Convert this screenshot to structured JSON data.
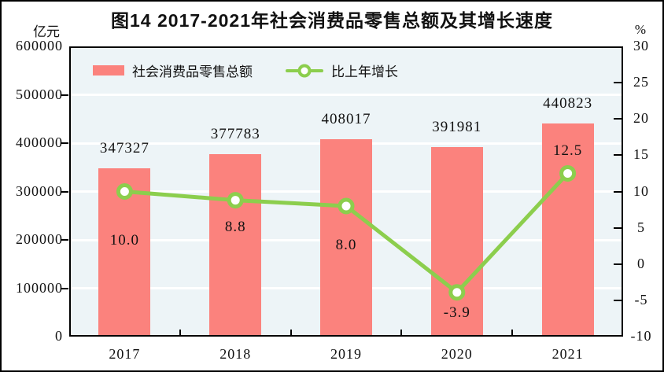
{
  "title": "图14  2017-2021年社会消费品零售总额及其增长速度",
  "colors": {
    "bar": "#FB827D",
    "line": "#8CCE4D",
    "marker_fill": "#FFFFFF",
    "plot_background": "#EDF4F7",
    "gridline": "#FFFFFF",
    "frame": "#000000",
    "text": "#111111"
  },
  "chart_data": {
    "type": "bar",
    "title": "图14  2017-2021年社会消费品零售总额及其增长速度",
    "categories": [
      "2017",
      "2018",
      "2019",
      "2020",
      "2021"
    ],
    "series": [
      {
        "name": "社会消费品零售总额",
        "type": "bar",
        "axis": "left",
        "values": [
          347327,
          377783,
          408017,
          391981,
          440823
        ],
        "labels": [
          "347327",
          "377783",
          "408017",
          "391981",
          "440823"
        ],
        "color": "#FB827D"
      },
      {
        "name": "比上年增长",
        "type": "line",
        "axis": "right",
        "values": [
          10.0,
          8.8,
          8.0,
          -3.9,
          12.5
        ],
        "labels": [
          "10.0",
          "8.8",
          "8.0",
          "-3.9",
          "12.5"
        ],
        "label_dy": [
          62,
          34,
          50,
          26,
          -28
        ],
        "color": "#8CCE4D"
      }
    ],
    "left_axis": {
      "unit": "亿元",
      "min": 0,
      "max": 600000,
      "step": 100000,
      "tick_labels": [
        "600000",
        "500000",
        "400000",
        "300000",
        "200000",
        "100000",
        "0"
      ]
    },
    "right_axis": {
      "unit": "%",
      "min": -10,
      "max": 30,
      "step": 5,
      "tick_labels": [
        "30",
        "25",
        "20",
        "15",
        "10",
        "5",
        "0",
        "-5",
        "-10"
      ]
    },
    "grid": true,
    "legend_position": "top-left-inside"
  }
}
